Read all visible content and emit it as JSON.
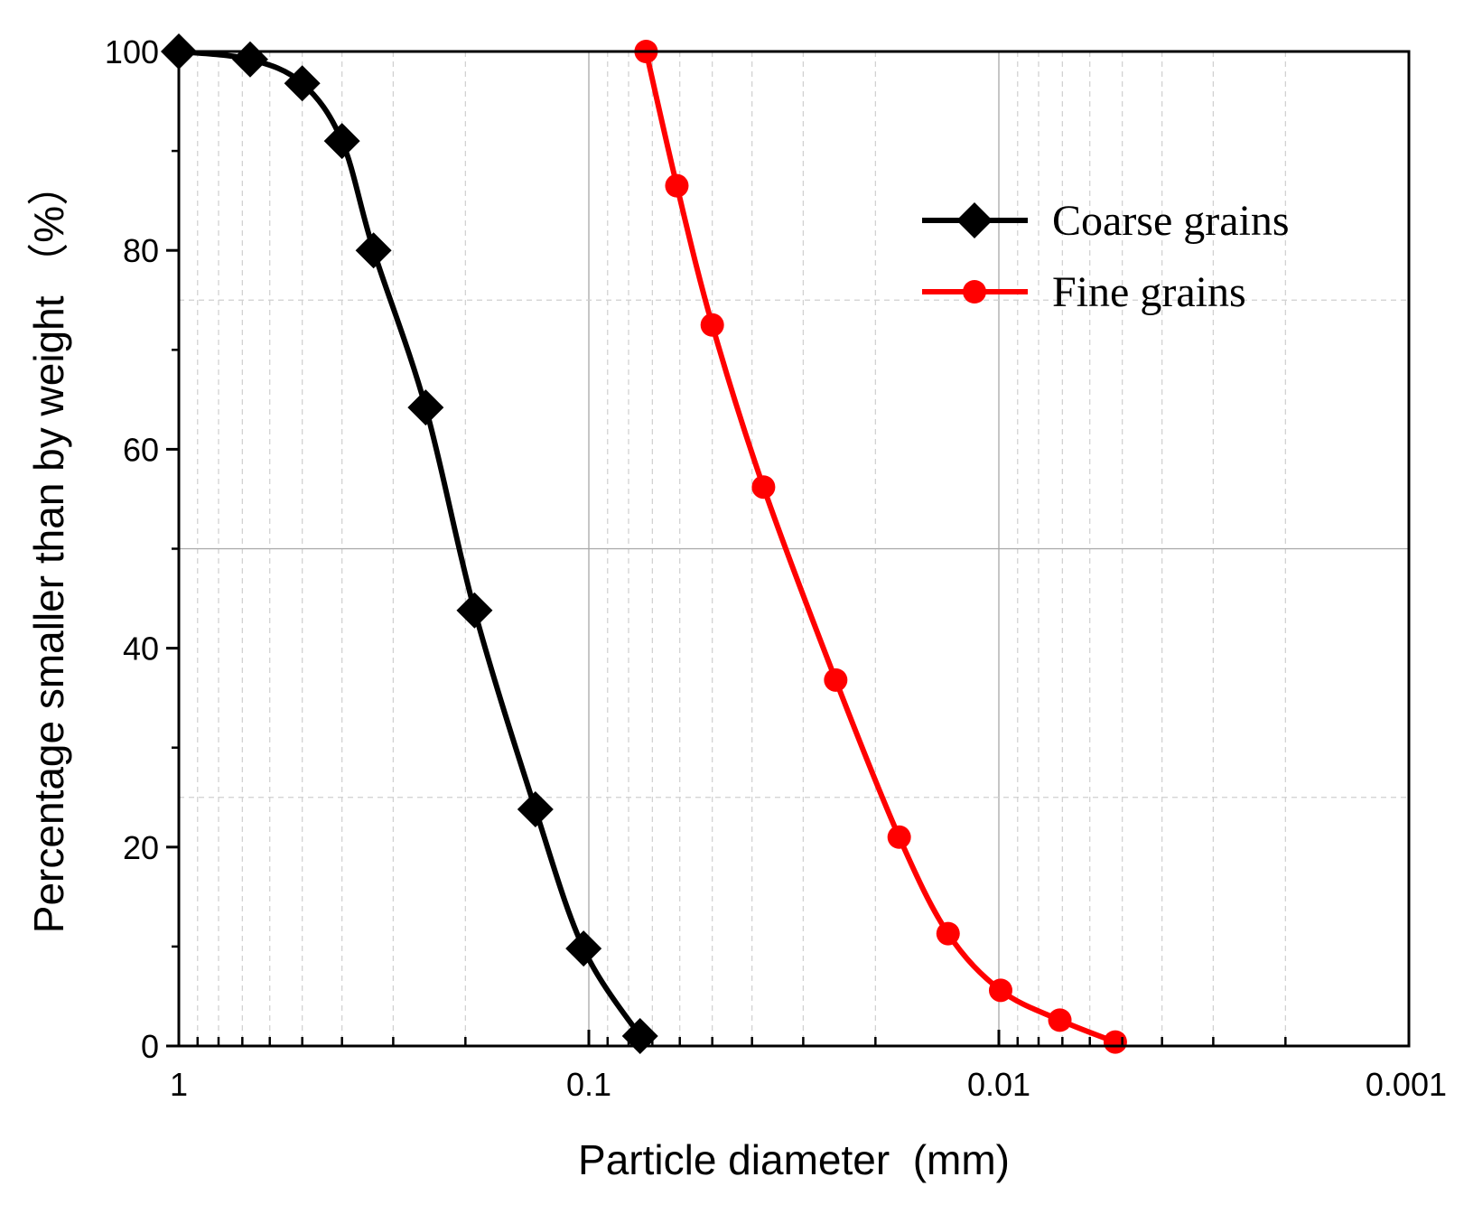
{
  "chart_data": {
    "type": "line",
    "title": "",
    "xlabel": "Particle diameter  (mm)",
    "ylabel": "Percentage smaller than by weight （%）",
    "x_scale": "log",
    "x_reversed": true,
    "xlim": [
      1,
      0.001
    ],
    "ylim": [
      0,
      100
    ],
    "x_ticks": [
      1,
      0.1,
      0.01,
      0.001
    ],
    "x_tick_labels": [
      "1",
      "0.1",
      "0.01",
      "0.001"
    ],
    "y_ticks": [
      0,
      20,
      40,
      60,
      80,
      100
    ],
    "y_tick_labels": [
      "0",
      "20",
      "40",
      "60",
      "80",
      "100"
    ],
    "grid": true,
    "legend_position": "top-right",
    "series": [
      {
        "name": "Coarse grains",
        "color": "#000000",
        "marker": "diamond",
        "x": [
          1.0,
          0.67,
          0.5,
          0.4,
          0.335,
          0.25,
          0.19,
          0.135,
          0.103,
          0.075
        ],
        "y": [
          100,
          99.2,
          96.8,
          91,
          80,
          64.2,
          43.8,
          23.8,
          9.8,
          1.0
        ]
      },
      {
        "name": "Fine grains",
        "color": "#ff0000",
        "marker": "circle",
        "x": [
          0.0725,
          0.061,
          0.05,
          0.0375,
          0.025,
          0.0175,
          0.0133,
          0.0099,
          0.0071,
          0.0052
        ],
        "y": [
          100,
          86.5,
          72.5,
          56.2,
          36.8,
          21,
          11.3,
          5.6,
          2.6,
          0.4
        ]
      }
    ]
  }
}
